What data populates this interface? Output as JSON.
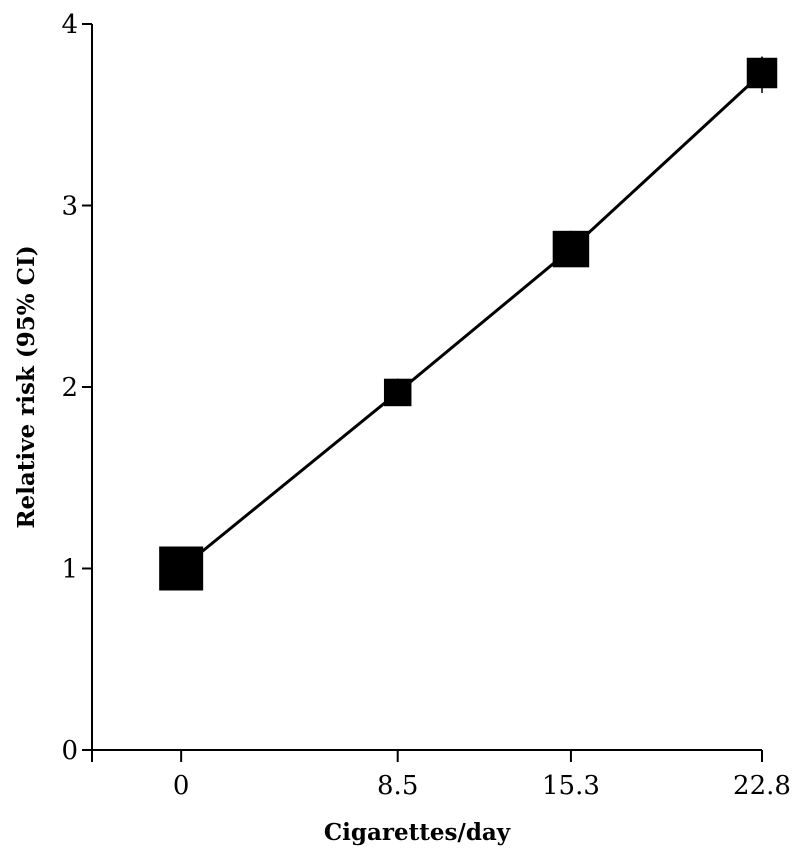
{
  "chart_data": {
    "type": "line",
    "title": "",
    "xlabel": "Cigarettes/day",
    "ylabel": "Relative risk (95% CI)",
    "xlim": [
      -3.5,
      22.8
    ],
    "ylim": [
      0,
      4
    ],
    "xticks": [
      {
        "value": 0,
        "label": "0"
      },
      {
        "value": 8.5,
        "label": "8.5"
      },
      {
        "value": 15.3,
        "label": "15.3"
      },
      {
        "value": 22.8,
        "label": "22.8"
      }
    ],
    "yticks": [
      {
        "value": 0,
        "label": "0"
      },
      {
        "value": 1,
        "label": "1"
      },
      {
        "value": 2,
        "label": "2"
      },
      {
        "value": 3,
        "label": "3"
      },
      {
        "value": 4,
        "label": "4"
      }
    ],
    "grid": false,
    "legend": "none",
    "series": [
      {
        "points": [
          {
            "x": 0,
            "y": 1.0,
            "ci_low": 1.0,
            "ci_high": 1.0,
            "weight": 1.0
          },
          {
            "x": 8.5,
            "y": 1.97,
            "ci_low": 1.92,
            "ci_high": 2.02,
            "weight": 0.45
          },
          {
            "x": 15.3,
            "y": 2.76,
            "ci_low": 2.7,
            "ci_high": 2.82,
            "weight": 0.75
          },
          {
            "x": 22.8,
            "y": 3.73,
            "ci_low": 3.62,
            "ci_high": 3.82,
            "weight": 0.55
          }
        ]
      }
    ]
  }
}
